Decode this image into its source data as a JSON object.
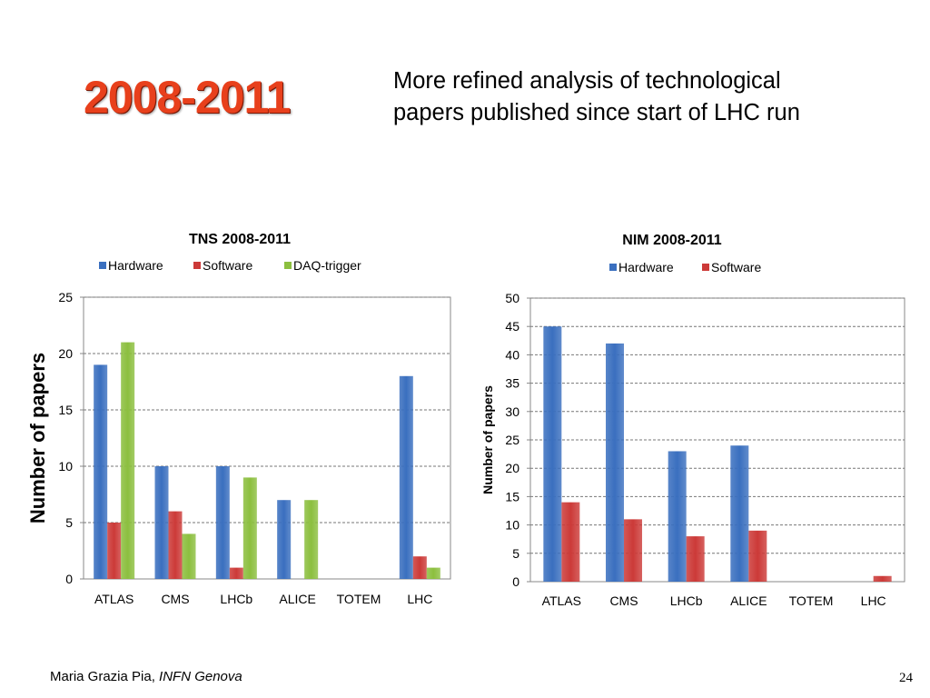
{
  "slide": {
    "title": "2008-2011",
    "subtitle_line1": "More refined analysis of technological",
    "subtitle_line2": "papers published since start of LHC run",
    "footer_author": "Maria Grazia Pia,",
    "footer_institution": "INFN Genova",
    "page_number": "24"
  },
  "colors": {
    "hardware": "#3a6fbf",
    "software": "#cc3a38",
    "daq": "#8cbf3f",
    "title": "#e8401c"
  },
  "chart_data": [
    {
      "type": "bar",
      "title": "TNS 2008-2011",
      "ylabel": "Number of papers",
      "xlabel": "",
      "categories": [
        "ATLAS",
        "CMS",
        "LHCb",
        "ALICE",
        "TOTEM",
        "LHC"
      ],
      "series": [
        {
          "name": "Hardware",
          "color": "#3a6fbf",
          "values": [
            19,
            10,
            10,
            7,
            0,
            18
          ]
        },
        {
          "name": "Software",
          "color": "#cc3a38",
          "values": [
            5,
            6,
            1,
            0,
            0,
            2
          ]
        },
        {
          "name": "DAQ-trigger",
          "color": "#8cbf3f",
          "values": [
            21,
            4,
            9,
            7,
            0,
            1
          ]
        }
      ],
      "ylim": [
        0,
        25
      ],
      "yticks": [
        "0",
        "5",
        "10",
        "15",
        "20",
        "25"
      ],
      "grid": true,
      "legend": "top"
    },
    {
      "type": "bar",
      "title": "NIM 2008-2011",
      "ylabel": "Number of papers",
      "xlabel": "",
      "categories": [
        "ATLAS",
        "CMS",
        "LHCb",
        "ALICE",
        "TOTEM",
        "LHC"
      ],
      "series": [
        {
          "name": "Hardware",
          "color": "#3a6fbf",
          "values": [
            45,
            42,
            23,
            24,
            0,
            0
          ]
        },
        {
          "name": "Software",
          "color": "#cc3a38",
          "values": [
            14,
            11,
            8,
            9,
            0,
            1
          ]
        }
      ],
      "ylim": [
        0,
        50
      ],
      "yticks": [
        "0",
        "5",
        "10",
        "15",
        "20",
        "25",
        "30",
        "35",
        "40",
        "45",
        "50"
      ],
      "grid": true,
      "legend": "top"
    }
  ]
}
